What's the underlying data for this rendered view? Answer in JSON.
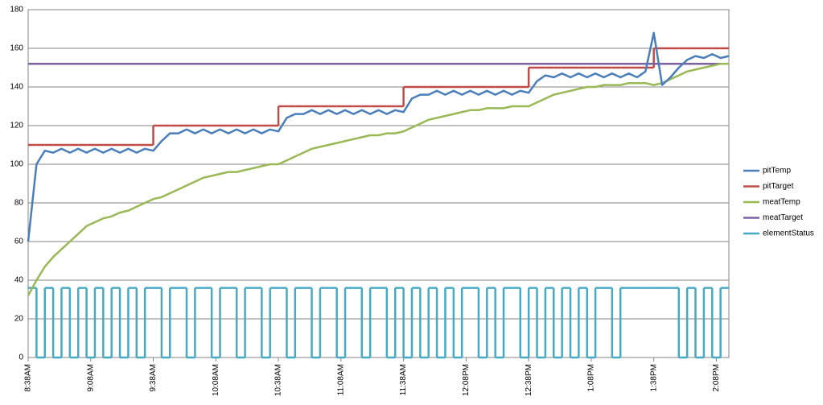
{
  "chart_data": {
    "type": "line",
    "x": [
      518,
      522,
      526,
      530,
      534,
      538,
      542,
      546,
      550,
      554,
      558,
      562,
      566,
      570,
      574,
      578,
      582,
      586,
      590,
      594,
      598,
      602,
      606,
      610,
      614,
      618,
      622,
      626,
      630,
      634,
      638,
      642,
      646,
      650,
      654,
      658,
      662,
      666,
      670,
      674,
      678,
      682,
      686,
      690,
      694,
      698,
      702,
      706,
      710,
      714,
      718,
      722,
      726,
      730,
      734,
      738,
      742,
      746,
      750,
      754,
      758,
      762,
      766,
      770,
      774,
      778,
      782,
      786,
      790,
      794,
      798,
      802,
      806,
      810,
      814,
      818,
      822,
      826,
      830,
      834,
      838,
      842,
      846,
      850,
      854
    ],
    "xlim": [
      518,
      854
    ],
    "xticks": [
      {
        "value": 518,
        "label": "8:38AM"
      },
      {
        "value": 548,
        "label": "9:08AM"
      },
      {
        "value": 578,
        "label": "9:38AM"
      },
      {
        "value": 608,
        "label": "10:08AM"
      },
      {
        "value": 638,
        "label": "10:38AM"
      },
      {
        "value": 668,
        "label": "11:08AM"
      },
      {
        "value": 698,
        "label": "11:38AM"
      },
      {
        "value": 728,
        "label": "12:08PM"
      },
      {
        "value": 758,
        "label": "12:38PM"
      },
      {
        "value": 788,
        "label": "1:08PM"
      },
      {
        "value": 818,
        "label": "1:38PM"
      },
      {
        "value": 848,
        "label": "2:08PM"
      }
    ],
    "ylim": [
      0,
      180
    ],
    "yticks": [
      0,
      20,
      40,
      60,
      80,
      100,
      120,
      140,
      160,
      180
    ],
    "grid": true,
    "legend": "right",
    "series": [
      {
        "name": "pitTemp",
        "color": "#4a7ebb",
        "values": [
          60,
          100,
          107,
          106,
          108,
          106,
          108,
          106,
          108,
          106,
          108,
          106,
          108,
          106,
          108,
          107,
          112,
          116,
          116,
          118,
          116,
          118,
          116,
          118,
          116,
          118,
          116,
          118,
          116,
          118,
          117,
          124,
          126,
          126,
          128,
          126,
          128,
          126,
          128,
          126,
          128,
          126,
          128,
          126,
          128,
          127,
          134,
          136,
          136,
          138,
          136,
          138,
          136,
          138,
          136,
          138,
          136,
          138,
          136,
          138,
          137,
          143,
          146,
          145,
          147,
          145,
          147,
          145,
          147,
          145,
          147,
          145,
          147,
          145,
          148,
          168,
          141,
          145,
          150,
          154,
          156,
          155,
          157,
          155,
          156
        ]
      },
      {
        "name": "pitTarget",
        "color": "#be4b48",
        "step": true,
        "values": [
          110,
          110,
          110,
          110,
          110,
          110,
          110,
          110,
          110,
          110,
          110,
          110,
          110,
          110,
          110,
          120,
          120,
          120,
          120,
          120,
          120,
          120,
          120,
          120,
          120,
          120,
          120,
          120,
          120,
          120,
          130,
          130,
          130,
          130,
          130,
          130,
          130,
          130,
          130,
          130,
          130,
          130,
          130,
          130,
          130,
          140,
          140,
          140,
          140,
          140,
          140,
          140,
          140,
          140,
          140,
          140,
          140,
          140,
          140,
          140,
          150,
          150,
          150,
          150,
          150,
          150,
          150,
          150,
          150,
          150,
          150,
          150,
          150,
          150,
          150,
          160,
          160,
          160,
          160,
          160,
          160,
          160,
          160,
          160,
          160
        ]
      },
      {
        "name": "meatTemp",
        "color": "#98b954",
        "values": [
          32,
          40,
          47,
          52,
          56,
          60,
          64,
          68,
          70,
          72,
          73,
          75,
          76,
          78,
          80,
          82,
          83,
          85,
          87,
          89,
          91,
          93,
          94,
          95,
          96,
          96,
          97,
          98,
          99,
          100,
          100,
          102,
          104,
          106,
          108,
          109,
          110,
          111,
          112,
          113,
          114,
          115,
          115,
          116,
          116,
          117,
          119,
          121,
          123,
          124,
          125,
          126,
          127,
          128,
          128,
          129,
          129,
          129,
          130,
          130,
          130,
          132,
          134,
          136,
          137,
          138,
          139,
          140,
          140,
          141,
          141,
          141,
          142,
          142,
          142,
          141,
          142,
          144,
          146,
          148,
          149,
          150,
          151,
          152,
          152
        ]
      },
      {
        "name": "meatTarget",
        "color": "#7d60a0",
        "values": [
          152,
          152,
          152,
          152,
          152,
          152,
          152,
          152,
          152,
          152,
          152,
          152,
          152,
          152,
          152,
          152,
          152,
          152,
          152,
          152,
          152,
          152,
          152,
          152,
          152,
          152,
          152,
          152,
          152,
          152,
          152,
          152,
          152,
          152,
          152,
          152,
          152,
          152,
          152,
          152,
          152,
          152,
          152,
          152,
          152,
          152,
          152,
          152,
          152,
          152,
          152,
          152,
          152,
          152,
          152,
          152,
          152,
          152,
          152,
          152,
          152,
          152,
          152,
          152,
          152,
          152,
          152,
          152,
          152,
          152,
          152,
          152,
          152,
          152,
          152,
          152,
          152,
          152,
          152,
          152,
          152,
          152,
          152,
          152,
          152
        ]
      },
      {
        "name": "elementStatus",
        "color": "#46aac5",
        "step": true,
        "values": [
          36,
          0,
          36,
          0,
          36,
          0,
          36,
          0,
          36,
          0,
          36,
          0,
          36,
          0,
          36,
          36,
          0,
          36,
          36,
          0,
          36,
          36,
          0,
          36,
          36,
          0,
          36,
          36,
          0,
          36,
          36,
          0,
          36,
          36,
          0,
          36,
          36,
          0,
          36,
          36,
          0,
          36,
          36,
          0,
          36,
          0,
          36,
          0,
          36,
          0,
          36,
          0,
          36,
          36,
          0,
          36,
          0,
          36,
          36,
          0,
          36,
          0,
          36,
          0,
          36,
          0,
          36,
          0,
          36,
          36,
          0,
          36,
          36,
          36,
          36,
          36,
          36,
          36,
          0,
          36,
          0,
          36,
          0,
          36,
          36
        ]
      }
    ]
  }
}
